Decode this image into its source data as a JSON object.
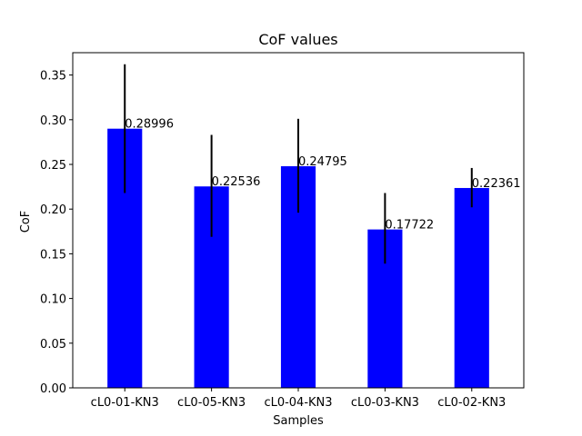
{
  "chart_data": {
    "type": "bar",
    "title": "CoF values",
    "xlabel": "Samples",
    "ylabel": "CoF",
    "categories": [
      "cL0-01-KN3",
      "cL0-05-KN3",
      "cL0-04-KN3",
      "cL0-03-KN3",
      "cL0-02-KN3"
    ],
    "values": [
      0.28996,
      0.22536,
      0.24795,
      0.17722,
      0.22361
    ],
    "data_labels": [
      "0.28996",
      "0.22536",
      "0.24795",
      "0.17722",
      "0.22361"
    ],
    "error_low": [
      0.218,
      0.169,
      0.196,
      0.139,
      0.202
    ],
    "error_high": [
      0.362,
      0.283,
      0.301,
      0.218,
      0.246
    ],
    "ylim": [
      0,
      0.375
    ],
    "yticks": [
      0.0,
      0.05,
      0.1,
      0.15,
      0.2,
      0.25,
      0.3,
      0.35
    ],
    "ytick_labels": [
      "0.00",
      "0.05",
      "0.10",
      "0.15",
      "0.20",
      "0.25",
      "0.30",
      "0.35"
    ],
    "bar_color": "#0000ff",
    "error_color": "#000000",
    "grid": false,
    "legend": "none"
  }
}
